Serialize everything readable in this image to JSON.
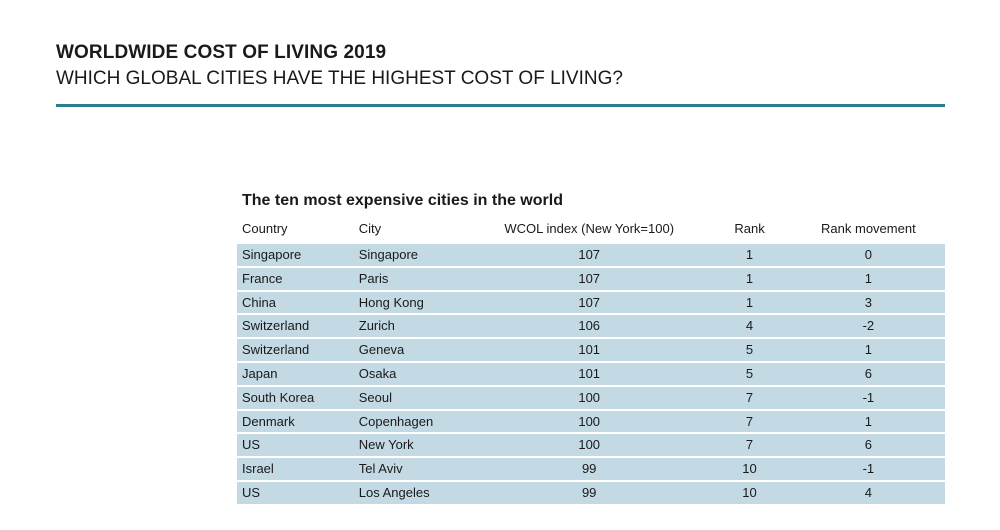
{
  "header": {
    "title": "WORLDWIDE COST OF LIVING 2019",
    "subtitle": "WHICH GLOBAL CITIES HAVE THE HIGHEST COST OF LIVING?"
  },
  "colors": {
    "accent_rule": "#2a7f8f",
    "row_background": "#c3d9e4"
  },
  "table": {
    "caption": "The ten most expensive cities in the world",
    "columns": [
      "Country",
      "City",
      "WCOL index (New York=100)",
      "Rank",
      "Rank movement"
    ],
    "rows": [
      [
        "Singapore",
        "Singapore",
        "107",
        "1",
        "0"
      ],
      [
        "France",
        "Paris",
        "107",
        "1",
        "1"
      ],
      [
        "China",
        "Hong Kong",
        "107",
        "1",
        "3"
      ],
      [
        "Switzerland",
        "Zurich",
        "106",
        "4",
        "-2"
      ],
      [
        "Switzerland",
        "Geneva",
        "101",
        "5",
        "1"
      ],
      [
        "Japan",
        "Osaka",
        "101",
        "5",
        "6"
      ],
      [
        "South Korea",
        "Seoul",
        "100",
        "7",
        "-1"
      ],
      [
        "Denmark",
        "Copenhagen",
        "100",
        "7",
        "1"
      ],
      [
        "US",
        "New York",
        "100",
        "7",
        "6"
      ],
      [
        "Israel",
        "Tel Aviv",
        "99",
        "10",
        "-1"
      ],
      [
        "US",
        "Los Angeles",
        "99",
        "10",
        "4"
      ]
    ]
  }
}
